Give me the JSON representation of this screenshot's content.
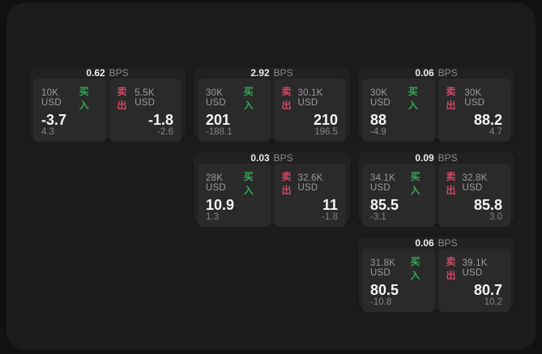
{
  "labels": {
    "bps": "BPS",
    "buy": "买入",
    "sell": "卖出"
  },
  "colors": {
    "buy": "#35a957",
    "sell": "#cf4a66",
    "page_bg": "#111111",
    "window_bg": "#1c1c1c",
    "card_bg": "#212121",
    "panel_bg": "#2a2a2a"
  },
  "cards": [
    {
      "bps": "0.62",
      "col": 1,
      "row": 1,
      "buy": {
        "amount": "10K USD",
        "value": "-3.7",
        "sub": "4.3"
      },
      "sell": {
        "amount": "5.5K USD",
        "value": "-1.8",
        "sub": "-2.6"
      }
    },
    {
      "bps": "2.92",
      "col": 2,
      "row": 1,
      "buy": {
        "amount": "30K USD",
        "value": "201",
        "sub": "-188.1"
      },
      "sell": {
        "amount": "30.1K USD",
        "value": "210",
        "sub": "196.5"
      }
    },
    {
      "bps": "0.06",
      "col": 3,
      "row": 1,
      "buy": {
        "amount": "30K USD",
        "value": "88",
        "sub": "-4.9"
      },
      "sell": {
        "amount": "30K USD",
        "value": "88.2",
        "sub": "4.7"
      }
    },
    {
      "bps": "0.03",
      "col": 2,
      "row": 2,
      "buy": {
        "amount": "28K USD",
        "value": "10.9",
        "sub": "1.3"
      },
      "sell": {
        "amount": "32.6K USD",
        "value": "11",
        "sub": "-1.8"
      }
    },
    {
      "bps": "0.09",
      "col": 3,
      "row": 2,
      "buy": {
        "amount": "34.1K USD",
        "value": "85.5",
        "sub": "-3.1"
      },
      "sell": {
        "amount": "32.8K USD",
        "value": "85.8",
        "sub": "3.0"
      }
    },
    {
      "bps": "0.06",
      "col": 3,
      "row": 3,
      "buy": {
        "amount": "31.8K USD",
        "value": "80.5",
        "sub": "-10.8"
      },
      "sell": {
        "amount": "39.1K USD",
        "value": "80.7",
        "sub": "10.2"
      }
    }
  ]
}
